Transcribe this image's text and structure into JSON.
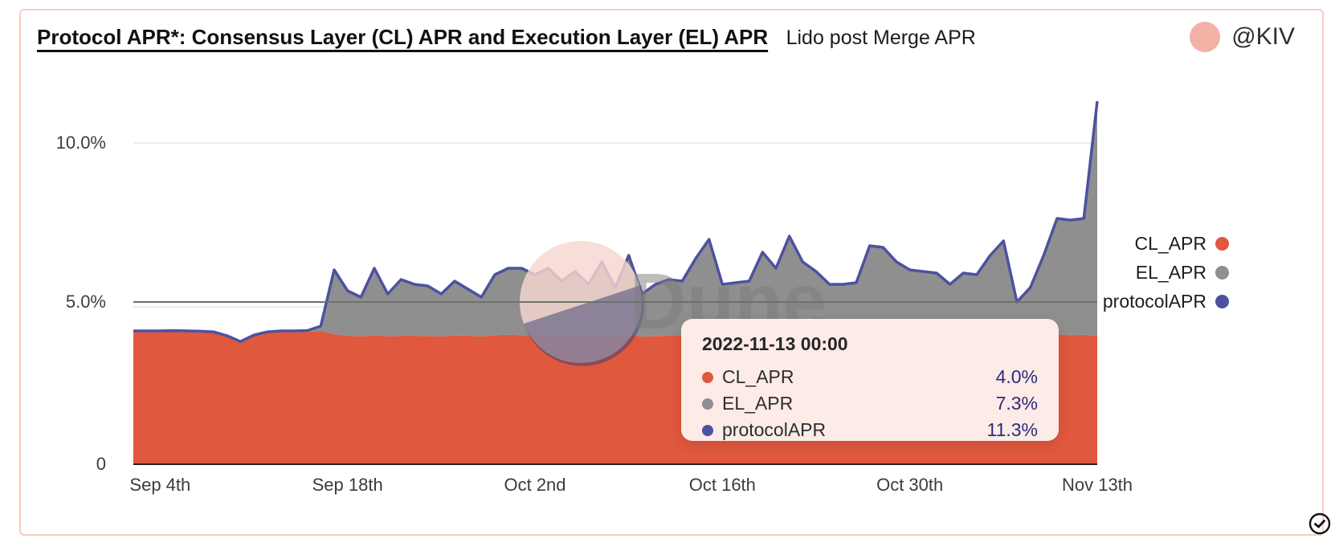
{
  "header": {
    "title": "Protocol APR*: Consensus Layer (CL) APR and Execution Layer (EL) APR",
    "subtitle": "Lido post Merge APR",
    "author_handle": "@KIV"
  },
  "watermark": {
    "text": "Dune"
  },
  "colors": {
    "cl": "#e0583e",
    "el": "#8f8f8f",
    "protocol": "#4c52a0",
    "tooltip_bg": "#fcebe7",
    "card_border": "#f5cdc2",
    "value_navy": "#2e2a7d"
  },
  "legend": [
    {
      "label": "CL_APR",
      "color": "#e0583e"
    },
    {
      "label": "EL_APR",
      "color": "#8f8f8f"
    },
    {
      "label": "protocolAPR",
      "color": "#4c52a0"
    }
  ],
  "tooltip": {
    "title": "2022-11-13 00:00",
    "rows": [
      {
        "label": "CL_APR",
        "color": "#e0583e",
        "value": "4.0%"
      },
      {
        "label": "EL_APR",
        "color": "#8f8f8f",
        "value": "7.3%"
      },
      {
        "label": "protocolAPR",
        "color": "#4c52a0",
        "value": "11.3%"
      }
    ]
  },
  "chart_data": {
    "type": "area",
    "stacked": true,
    "title": "Protocol APR*: Consensus Layer (CL) APR and Execution Layer (EL) APR",
    "subtitle": "Lido post Merge APR",
    "ylim": [
      0,
      11.5
    ],
    "grid": true,
    "legend_position": "right",
    "yticks": [
      {
        "label": "10.0%",
        "value": 10
      },
      {
        "label": "5.0%",
        "value": 5
      },
      {
        "label": "0",
        "value": 0
      }
    ],
    "xticks": [
      {
        "label": "Sep 4th",
        "index": 2
      },
      {
        "label": "Sep 18th",
        "index": 16
      },
      {
        "label": "Oct 2nd",
        "index": 30
      },
      {
        "label": "Oct 16th",
        "index": 44
      },
      {
        "label": "Oct 30th",
        "index": 58
      },
      {
        "label": "Nov 13th",
        "index": 72
      }
    ],
    "x_dates": [
      "2022-09-02",
      "2022-09-03",
      "2022-09-04",
      "2022-09-05",
      "2022-09-06",
      "2022-09-07",
      "2022-09-08",
      "2022-09-09",
      "2022-09-10",
      "2022-09-11",
      "2022-09-12",
      "2022-09-13",
      "2022-09-14",
      "2022-09-15",
      "2022-09-16",
      "2022-09-17",
      "2022-09-18",
      "2022-09-19",
      "2022-09-20",
      "2022-09-21",
      "2022-09-22",
      "2022-09-23",
      "2022-09-24",
      "2022-09-25",
      "2022-09-26",
      "2022-09-27",
      "2022-09-28",
      "2022-09-29",
      "2022-09-30",
      "2022-10-01",
      "2022-10-02",
      "2022-10-03",
      "2022-10-04",
      "2022-10-05",
      "2022-10-06",
      "2022-10-07",
      "2022-10-08",
      "2022-10-09",
      "2022-10-10",
      "2022-10-11",
      "2022-10-12",
      "2022-10-13",
      "2022-10-14",
      "2022-10-15",
      "2022-10-16",
      "2022-10-17",
      "2022-10-18",
      "2022-10-19",
      "2022-10-20",
      "2022-10-21",
      "2022-10-22",
      "2022-10-23",
      "2022-10-24",
      "2022-10-25",
      "2022-10-26",
      "2022-10-27",
      "2022-10-28",
      "2022-10-29",
      "2022-10-30",
      "2022-10-31",
      "2022-11-01",
      "2022-11-02",
      "2022-11-03",
      "2022-11-04",
      "2022-11-05",
      "2022-11-06",
      "2022-11-07",
      "2022-11-08",
      "2022-11-09",
      "2022-11-10",
      "2022-11-11",
      "2022-11-12",
      "2022-11-13"
    ],
    "series": [
      {
        "name": "CL_APR",
        "color": "#e0583e",
        "values": [
          4.12,
          4.12,
          4.12,
          4.13,
          4.12,
          4.11,
          4.09,
          3.97,
          3.79,
          3.99,
          4.09,
          4.12,
          4.12,
          4.12,
          4.15,
          4.05,
          4.0,
          3.98,
          4.02,
          3.98,
          4.0,
          4.0,
          3.99,
          3.98,
          4.01,
          4.0,
          3.98,
          4.02,
          4.03,
          4.02,
          4.0,
          4.02,
          3.99,
          4.01,
          3.98,
          4.02,
          3.98,
          4.03,
          3.97,
          3.99,
          4.0,
          4.0,
          4.02,
          4.04,
          3.98,
          3.99,
          4.0,
          4.03,
          4.0,
          4.04,
          4.01,
          4.0,
          3.98,
          3.98,
          3.99,
          4.03,
          4.02,
          4.01,
          4.0,
          4.0,
          3.99,
          3.97,
          4.0,
          3.99,
          4.02,
          4.03,
          3.95,
          3.97,
          4.01,
          4.04,
          4.02,
          4.03,
          4.0
        ]
      },
      {
        "name": "EL_APR",
        "color": "#8f8f8f",
        "values": [
          0.03,
          0.03,
          0.03,
          0.03,
          0.03,
          0.03,
          0.03,
          0.03,
          0.03,
          0.03,
          0.03,
          0.03,
          0.03,
          0.04,
          0.15,
          2.0,
          1.4,
          1.22,
          2.08,
          1.32,
          1.75,
          1.6,
          1.56,
          1.32,
          1.69,
          1.45,
          1.22,
          1.88,
          2.07,
          2.08,
          1.9,
          2.08,
          1.71,
          1.99,
          1.62,
          2.28,
          1.52,
          2.47,
          1.33,
          1.61,
          1.75,
          1.7,
          2.38,
          2.96,
          1.62,
          1.66,
          1.7,
          2.57,
          2.1,
          3.06,
          2.29,
          2.0,
          1.62,
          1.62,
          1.66,
          2.77,
          2.73,
          2.29,
          2.05,
          2.0,
          1.96,
          1.63,
          1.95,
          1.91,
          2.48,
          2.92,
          1.1,
          1.53,
          2.49,
          3.61,
          3.58,
          3.62,
          7.3
        ]
      },
      {
        "name": "protocolAPR",
        "color": "#4c52a0",
        "values": [
          4.15,
          4.15,
          4.15,
          4.16,
          4.15,
          4.14,
          4.12,
          4.0,
          3.82,
          4.02,
          4.12,
          4.15,
          4.15,
          4.16,
          4.3,
          6.05,
          5.4,
          5.2,
          6.1,
          5.3,
          5.75,
          5.6,
          5.55,
          5.3,
          5.7,
          5.45,
          5.2,
          5.9,
          6.1,
          6.1,
          5.9,
          6.1,
          5.7,
          6.0,
          5.6,
          6.3,
          5.5,
          6.5,
          5.3,
          5.6,
          5.75,
          5.7,
          6.4,
          7.0,
          5.6,
          5.65,
          5.7,
          6.6,
          6.1,
          7.1,
          6.3,
          6.0,
          5.6,
          5.6,
          5.65,
          6.8,
          6.75,
          6.3,
          6.05,
          6.0,
          5.95,
          5.6,
          5.95,
          5.9,
          6.5,
          6.95,
          5.05,
          5.5,
          6.5,
          7.65,
          7.6,
          7.65,
          11.3
        ]
      }
    ]
  }
}
